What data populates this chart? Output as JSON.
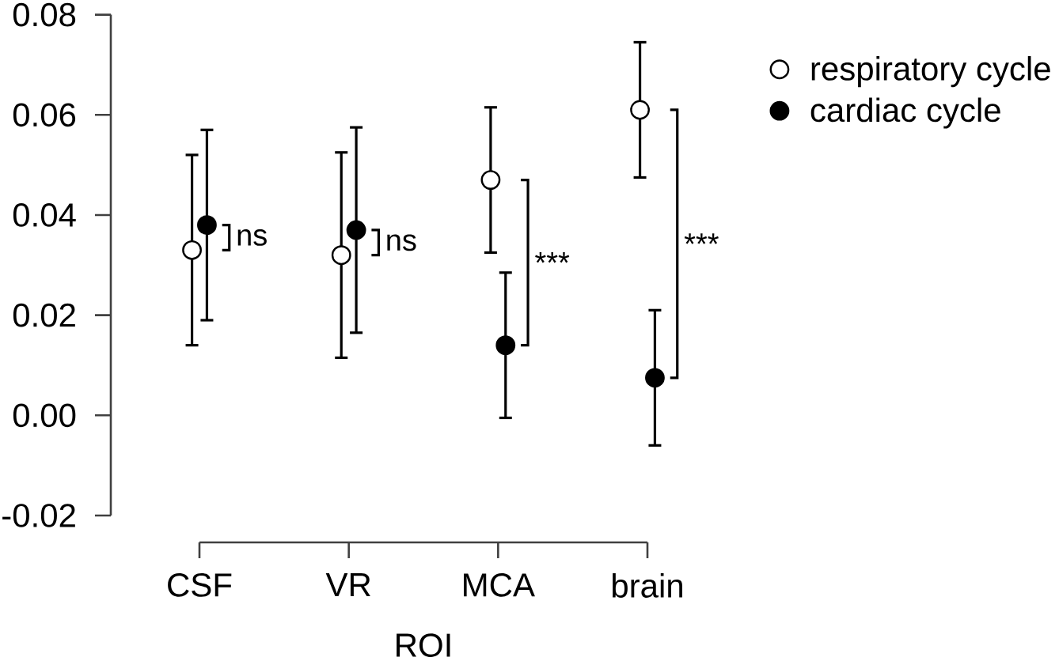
{
  "chart_data": {
    "type": "scatter",
    "xlabel": "ROI",
    "categories": [
      "CSF",
      "VR",
      "MCA",
      "brain"
    ],
    "series": [
      {
        "name": "respiratory cycle",
        "color": "#ffffff",
        "values": [
          0.033,
          0.032,
          0.047,
          0.061
        ],
        "errors": [
          0.019,
          0.0205,
          0.0145,
          0.0135
        ]
      },
      {
        "name": "cardiac cycle",
        "color": "#000000",
        "values": [
          0.038,
          0.037,
          0.014,
          0.0075
        ],
        "errors": [
          0.019,
          0.0205,
          0.0145,
          0.0135
        ]
      }
    ],
    "ylim": [
      -0.02,
      0.08
    ],
    "yticks": [
      -0.02,
      {
        "value": 0,
        "label": "0.00"
      },
      0.02,
      0.04,
      0.06,
      0.08
    ],
    "marker": "circle",
    "legend": "top right",
    "annotations": [
      "ns",
      "ns",
      "***",
      "***"
    ]
  }
}
